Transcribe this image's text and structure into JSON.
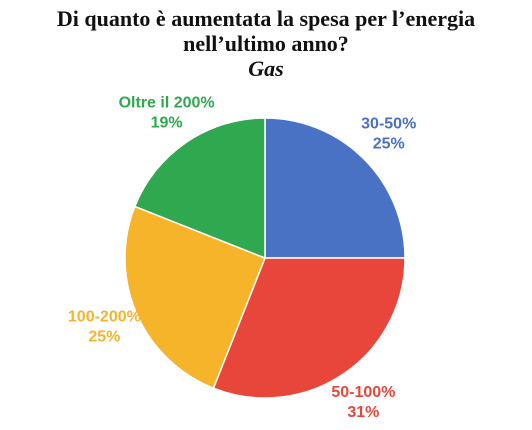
{
  "chart_data": {
    "type": "pie",
    "title": "Di quanto è aumentata la spesa per l’energia nell’ultimo anno?",
    "subtitle": "Gas",
    "categories": [
      "30-50%",
      "50-100%",
      "100-200%",
      "Oltre il 200%"
    ],
    "values": [
      25,
      31,
      25,
      19
    ],
    "value_labels": [
      "25%",
      "31%",
      "25%",
      "19%"
    ],
    "colors": [
      "#4a72c4",
      "#e8463a",
      "#f6b42a",
      "#30a84f"
    ]
  }
}
